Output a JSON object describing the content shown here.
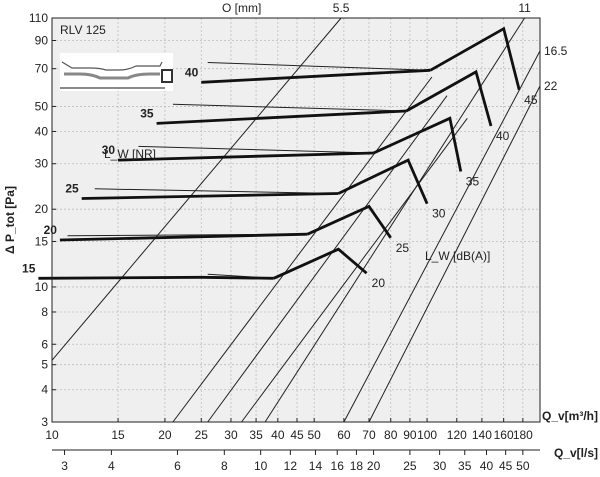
{
  "chart_data": {
    "type": "line",
    "title": "RLV 125",
    "ylabel": "Δ P_tot [Pa]",
    "xlabel_top": "Q_v[m³/h]",
    "xlabel_bottom": "Q_v[l/s]",
    "top_label": "O [mm]",
    "nr_label": "L_W [NR]",
    "dba_label": "L_W [dB(A)]",
    "x_scale": "log",
    "y_scale": "log",
    "xlim": [
      10,
      200
    ],
    "ylim": [
      3,
      110
    ],
    "grid": true,
    "y_ticks": [
      3,
      4,
      5,
      6,
      8,
      10,
      15,
      20,
      30,
      40,
      50,
      70,
      90,
      110
    ],
    "x_ticks_m3h": [
      10,
      15,
      20,
      25,
      30,
      35,
      40,
      45,
      50,
      60,
      70,
      80,
      90,
      100,
      120,
      140,
      160,
      180
    ],
    "x_ticks_ls_labels": [
      "3",
      "4",
      "6",
      "8",
      "10",
      "12",
      "14",
      "16",
      "18",
      "20",
      "25",
      "30",
      "35",
      "40",
      "45",
      "50"
    ],
    "x_ticks_ls_values": [
      3,
      4,
      6,
      8,
      10,
      12,
      14,
      16,
      18,
      20,
      25,
      30,
      35,
      40,
      45,
      50
    ],
    "openings": [
      {
        "label": "5.5",
        "points": [
          [
            10,
            5.2
          ],
          [
            59,
            110
          ]
        ]
      },
      {
        "label": "",
        "points": [
          [
            21,
            3
          ],
          [
            103,
            65
          ]
        ]
      },
      {
        "label": "",
        "points": [
          [
            26,
            3
          ],
          [
            113,
            55
          ]
        ]
      },
      {
        "label": "",
        "points": [
          [
            32,
            3
          ],
          [
            128,
            45
          ]
        ]
      },
      {
        "label": "11",
        "points": [
          [
            37,
            3
          ],
          [
            182,
            110
          ]
        ]
      },
      {
        "label": "16.5",
        "points": [
          [
            60,
            3
          ],
          [
            200,
            82
          ]
        ]
      },
      {
        "label": "22",
        "points": [
          [
            70,
            3
          ],
          [
            200,
            60
          ]
        ]
      }
    ],
    "nr_curves": [
      {
        "label": "40",
        "values": [
          [
            25,
            62
          ],
          [
            102,
            69
          ]
        ],
        "thin": [
          [
            26,
            74
          ],
          [
            102,
            69
          ]
        ]
      },
      {
        "label": "35",
        "values": [
          [
            19,
            43
          ],
          [
            88,
            48
          ]
        ],
        "thin": [
          [
            21,
            51
          ],
          [
            88,
            48
          ]
        ]
      },
      {
        "label": "30",
        "values": [
          [
            15,
            31
          ],
          [
            72,
            33
          ]
        ],
        "thin": [
          [
            17,
            35
          ],
          [
            72,
            33
          ]
        ]
      },
      {
        "label": "25",
        "values": [
          [
            12,
            22
          ],
          [
            58,
            23
          ]
        ],
        "thin": [
          [
            13,
            24
          ],
          [
            58,
            23
          ]
        ]
      },
      {
        "label": "20",
        "values": [
          [
            10.5,
            15.2
          ],
          [
            48,
            16
          ]
        ],
        "thin": [
          [
            11,
            15.8
          ],
          [
            48,
            16
          ]
        ]
      },
      {
        "label": "15",
        "values": [
          [
            9.2,
            10.8
          ],
          [
            25,
            10.9
          ],
          [
            39,
            10.8
          ]
        ],
        "thin": [
          [
            26,
            11.2
          ],
          [
            39,
            10.8
          ]
        ]
      }
    ],
    "dba_curves": [
      {
        "label": "45",
        "values": [
          [
            102,
            69
          ],
          [
            160,
            100
          ],
          [
            176,
            58
          ]
        ]
      },
      {
        "label": "40",
        "values": [
          [
            88,
            48
          ],
          [
            135,
            68
          ],
          [
            148,
            42
          ]
        ]
      },
      {
        "label": "35",
        "values": [
          [
            72,
            33
          ],
          [
            115,
            45
          ],
          [
            123,
            28
          ]
        ]
      },
      {
        "label": "30",
        "values": [
          [
            58,
            23
          ],
          [
            89,
            31
          ],
          [
            100,
            21
          ]
        ]
      },
      {
        "label": "25",
        "values": [
          [
            48,
            16
          ],
          [
            70,
            20.5
          ],
          [
            80,
            15.5
          ]
        ]
      },
      {
        "label": "20",
        "values": [
          [
            39,
            10.8
          ],
          [
            58,
            14
          ],
          [
            69,
            11.3
          ]
        ]
      }
    ]
  }
}
